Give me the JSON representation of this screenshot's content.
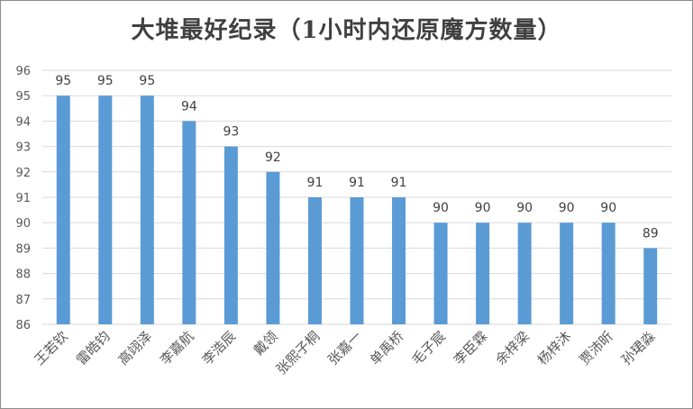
{
  "chart_data": {
    "type": "bar",
    "title": "大堆最好纪录（1小时内还原魔方数量）",
    "xlabel": "",
    "ylabel": "",
    "categories": [
      "王若钦",
      "雷皓钧",
      "高翊泽",
      "李嘉航",
      "李浩辰",
      "戴领",
      "张熙子桐",
      "张嘉一",
      "单禹桥",
      "毛子宸",
      "李臣霖",
      "余梓梁",
      "杨梓沐",
      "贾沛昕",
      "孙珺淼"
    ],
    "values": [
      95,
      95,
      95,
      94,
      93,
      92,
      91,
      91,
      91,
      90,
      90,
      90,
      90,
      90,
      89
    ],
    "ylim": [
      86,
      96
    ],
    "yticks": [
      86,
      87,
      88,
      89,
      90,
      91,
      92,
      93,
      94,
      95,
      96
    ],
    "grid": true,
    "legend": "none",
    "bar_color": "#5b9bd5",
    "grid_color": "#d9d9d9"
  }
}
